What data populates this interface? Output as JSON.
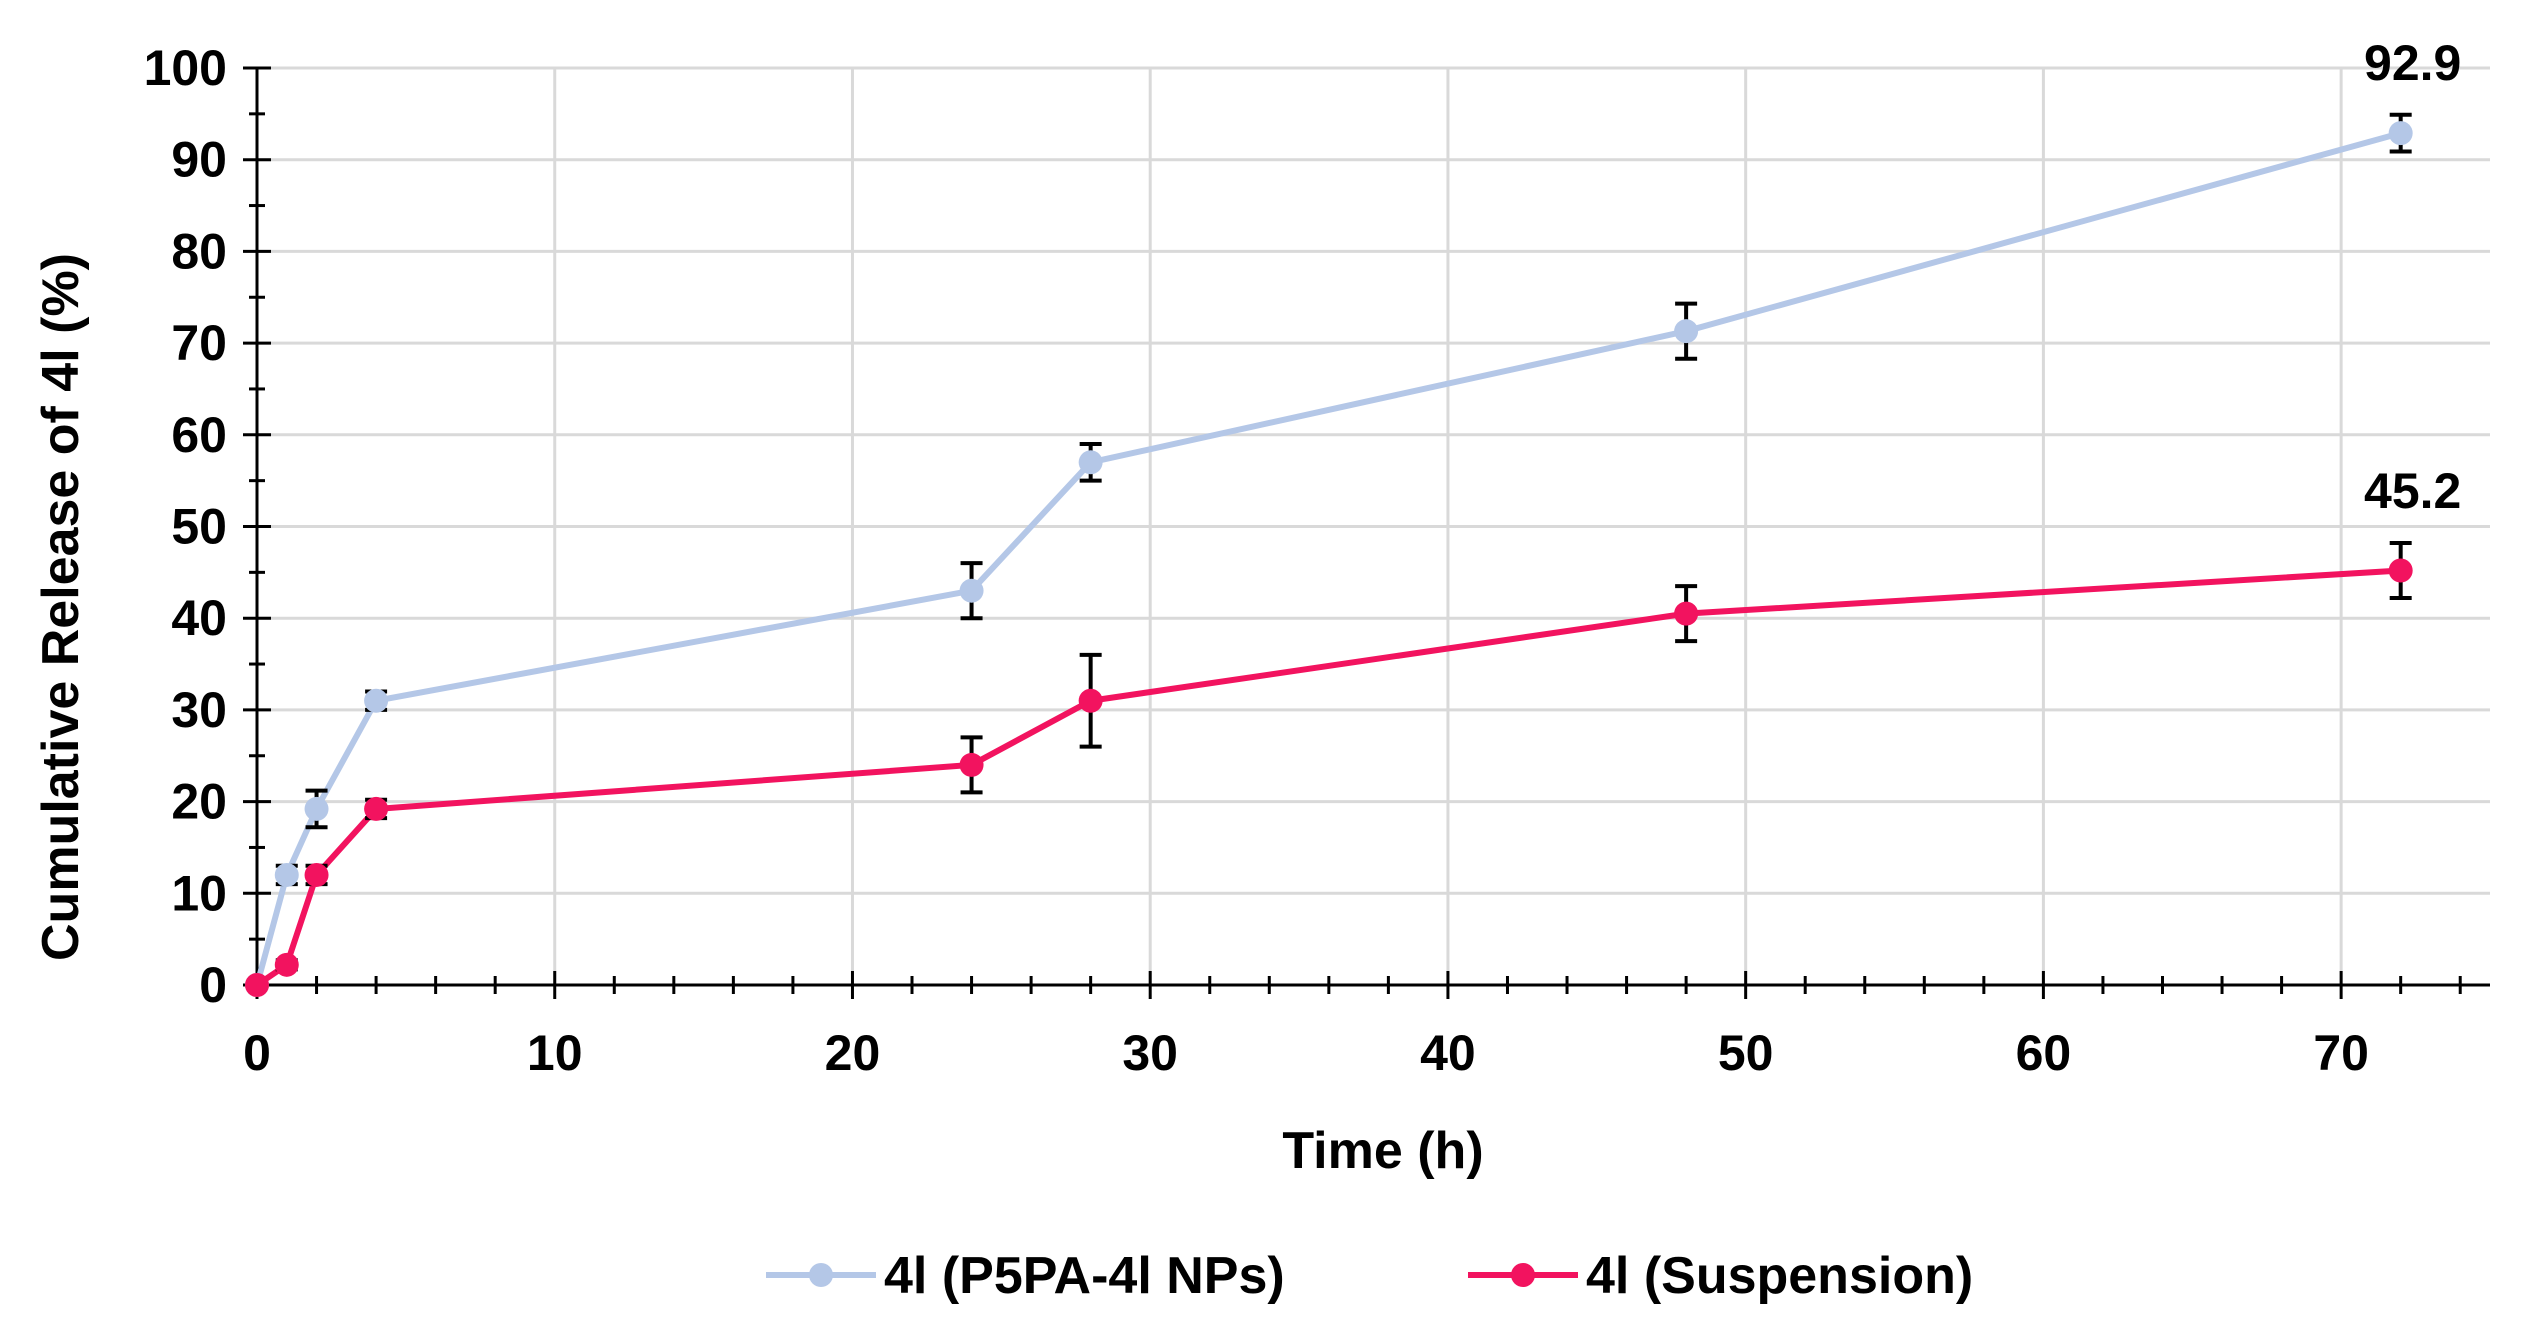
{
  "chart_data": {
    "type": "line",
    "title": "",
    "xlabel": "Time (h)",
    "ylabel": "Cumulative Release of 4l (%)",
    "xlim": [
      0,
      75
    ],
    "ylim": [
      0,
      100
    ],
    "x_ticks": [
      0,
      10,
      20,
      30,
      40,
      50,
      60,
      70
    ],
    "y_ticks": [
      0,
      10,
      20,
      30,
      40,
      50,
      60,
      70,
      80,
      90,
      100
    ],
    "x_tick_labels": [
      "0",
      "10",
      "20",
      "30",
      "40",
      "50",
      "60",
      "70"
    ],
    "y_tick_labels": [
      "0",
      "10",
      "20",
      "30",
      "40",
      "50",
      "60",
      "70",
      "80",
      "90",
      "100"
    ],
    "grid": true,
    "legend_position": "bottom",
    "series": [
      {
        "name": "4l (P5PA-4l NPs)",
        "color": "#B4C7E7",
        "x": [
          0,
          1,
          2,
          4,
          24,
          28,
          48,
          72
        ],
        "values": [
          0,
          12,
          19.2,
          31,
          43,
          57,
          71.3,
          92.9
        ],
        "errors": [
          0,
          1,
          2,
          1,
          3,
          2,
          3,
          2
        ],
        "end_label": "92.9"
      },
      {
        "name": "4l (Suspension)",
        "color": "#F2135F",
        "x": [
          0,
          1,
          2,
          4,
          24,
          28,
          48,
          72
        ],
        "values": [
          0,
          2.2,
          12,
          19.2,
          24,
          31,
          40.5,
          45.2
        ],
        "errors": [
          0,
          0.5,
          1,
          1,
          3,
          5,
          3,
          3
        ],
        "end_label": "45.2"
      }
    ]
  }
}
